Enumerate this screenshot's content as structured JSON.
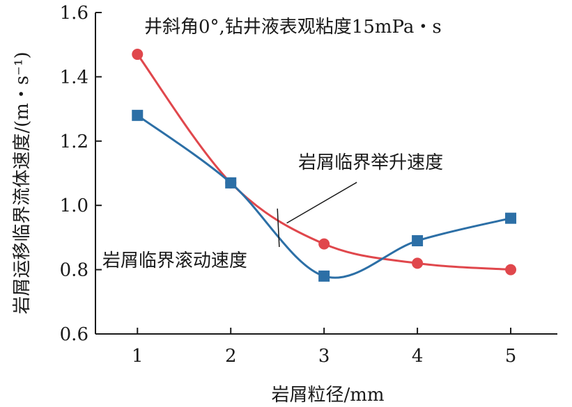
{
  "chart_data": {
    "type": "line",
    "title": "井斜角0°,钻井液表观粘度15mPa・s",
    "xlabel": "岩屑粒径/mm",
    "ylabel": "岩屑运移临界流体速度/(m・s⁻¹)",
    "categories": [
      1,
      2,
      3,
      4,
      5
    ],
    "x_ticks": [
      "1",
      "2",
      "3",
      "4",
      "5"
    ],
    "y_ticks": [
      "0.6",
      "0.8",
      "1.0",
      "1.2",
      "1.4",
      "1.6"
    ],
    "xlim": [
      0.55,
      5.5
    ],
    "ylim": [
      0.6,
      1.6
    ],
    "grid": false,
    "series": [
      {
        "name": "岩屑临界举升速度",
        "color": "#e0474c",
        "marker": "circle",
        "x": [
          1,
          2,
          3,
          4,
          5
        ],
        "values": [
          1.47,
          1.07,
          0.88,
          0.82,
          0.8
        ]
      },
      {
        "name": "岩屑临界滚动速度",
        "color": "#2c6fa6",
        "marker": "square",
        "x": [
          1,
          2,
          3,
          4,
          5
        ],
        "values": [
          1.28,
          1.07,
          0.78,
          0.89,
          0.96
        ]
      }
    ],
    "annotations": [
      {
        "text": "岩屑临界举升速度",
        "series": 0,
        "at": [
          2.6,
          0.945
        ],
        "label_at": [
          3.5,
          1.115
        ]
      },
      {
        "text": "岩屑临界滚动速度",
        "series": 1,
        "at": [
          2.5,
          0.99
        ],
        "label_at": [
          1.4,
          0.81
        ]
      }
    ]
  }
}
